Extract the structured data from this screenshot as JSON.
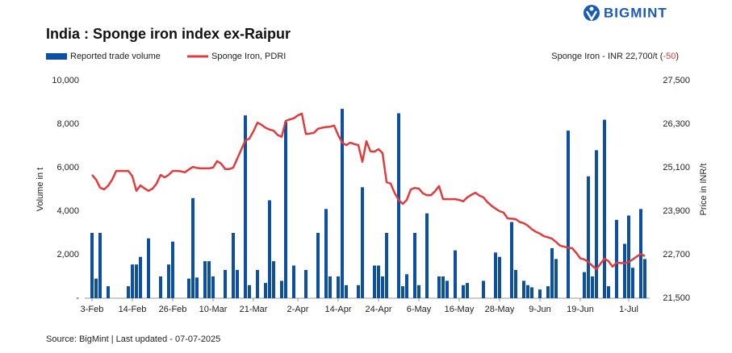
{
  "chart_data": {
    "type": "bar-line",
    "logo": "BIGMINT",
    "title": "India : Sponge iron index ex-Raipur",
    "annotation": "Sponge Iron - INR 22,700/t (",
    "annotation_change": "-50",
    "annotation_end": ")",
    "ylabel": "Volume in t",
    "y2label": "Price in INR/t",
    "source": "Source: BigMint | Last updated - 07-07-2025",
    "categories": [
      "3-Feb",
      null,
      null,
      null,
      null,
      null,
      null,
      null,
      null,
      null,
      "14-Feb",
      null,
      null,
      null,
      null,
      null,
      null,
      null,
      null,
      null,
      "26-Feb",
      null,
      null,
      null,
      null,
      null,
      null,
      null,
      null,
      null,
      "10-Mar",
      null,
      null,
      null,
      null,
      null,
      null,
      null,
      null,
      null,
      "21-Mar",
      null,
      null,
      null,
      null,
      null,
      null,
      null,
      null,
      null,
      null,
      "2-Apr",
      null,
      null,
      null,
      null,
      null,
      null,
      null,
      null,
      null,
      "14-Apr",
      null,
      null,
      null,
      null,
      null,
      null,
      null,
      null,
      null,
      "24-Apr",
      null,
      null,
      null,
      null,
      null,
      null,
      null,
      null,
      null,
      "6-May",
      null,
      null,
      null,
      null,
      null,
      null,
      null,
      null,
      null,
      "16-May",
      null,
      null,
      null,
      null,
      null,
      null,
      null,
      null,
      null,
      "28-May",
      null,
      null,
      null,
      null,
      null,
      null,
      null,
      null,
      null,
      "9-Jun",
      null,
      null,
      null,
      null,
      null,
      null,
      null,
      null,
      null,
      "19-Jun",
      null,
      null,
      null,
      null,
      null,
      null,
      null,
      null,
      null,
      null,
      null,
      "1-Jul",
      null,
      null,
      null,
      null
    ],
    "series": [
      {
        "name": "Reported trade volume",
        "type": "bar",
        "color": "#0d4fa3",
        "values": [
          3000,
          900,
          3000,
          null,
          550,
          null,
          null,
          null,
          null,
          550,
          1550,
          1550,
          1900,
          null,
          2750,
          null,
          null,
          1000,
          null,
          1550,
          2600,
          null,
          null,
          null,
          900,
          4600,
          950,
          null,
          1700,
          1700,
          1000,
          null,
          null,
          1300,
          null,
          3000,
          1300,
          null,
          8400,
          600,
          null,
          1300,
          null,
          700,
          4500,
          1700,
          null,
          800,
          8100,
          null,
          1500,
          null,
          null,
          1300,
          null,
          null,
          3000,
          null,
          4100,
          1000,
          null,
          1000,
          8700,
          600,
          null,
          null,
          600,
          5100,
          null,
          null,
          1500,
          1500,
          1000,
          3000,
          null,
          null,
          8500,
          550,
          1100,
          null,
          3000,
          600,
          null,
          3900,
          null,
          null,
          1000,
          1000,
          800,
          null,
          2200,
          null,
          600,
          700,
          null,
          null,
          null,
          800,
          null,
          null,
          2100,
          1900,
          null,
          null,
          3500,
          1300,
          null,
          800,
          600,
          500,
          null,
          400,
          null,
          550,
          2300,
          1800,
          null,
          null,
          7700,
          null,
          null,
          null,
          1200,
          5600,
          1000,
          6800,
          null,
          8200,
          550,
          null,
          3600,
          null,
          2500,
          3800,
          1400,
          null,
          4100,
          1800
        ]
      },
      {
        "name": "Sponge Iron, PDRI",
        "type": "line",
        "axis": "y2",
        "color": "#e23b3b",
        "values": [
          24900,
          24770,
          24550,
          24500,
          24600,
          24770,
          25010,
          25010,
          25010,
          25010,
          24860,
          24460,
          24610,
          24530,
          24460,
          24520,
          24660,
          24900,
          24830,
          24900,
          25010,
          25010,
          25000,
          24970,
          25050,
          25120,
          25090,
          25080,
          25080,
          25080,
          25100,
          25280,
          25210,
          25060,
          25060,
          25100,
          25350,
          25600,
          25850,
          25900,
          26100,
          26340,
          26280,
          26200,
          26150,
          26120,
          26000,
          25950,
          26390,
          26430,
          26460,
          26540,
          26590,
          26030,
          26040,
          26060,
          26170,
          26200,
          26220,
          26230,
          26260,
          26000,
          25790,
          25720,
          25790,
          25750,
          25720,
          25260,
          25830,
          25550,
          25540,
          25610,
          25500,
          24700,
          24660,
          24400,
          24210,
          24100,
          24210,
          24500,
          24540,
          24520,
          24390,
          24340,
          24340,
          24450,
          24590,
          24230,
          24230,
          24230,
          24230,
          24210,
          24170,
          24280,
          24350,
          24410,
          24330,
          24280,
          24150,
          24050,
          23970,
          23900,
          23860,
          23700,
          23690,
          23680,
          23600,
          23570,
          23500,
          23400,
          23330,
          23280,
          23210,
          23180,
          23140,
          23050,
          22950,
          22920,
          22890,
          22880,
          22750,
          22600,
          22570,
          22500,
          22390,
          22300,
          22450,
          22590,
          22520,
          22370,
          22480,
          22470,
          22460,
          22500,
          22570,
          22650,
          22720,
          22660
        ]
      }
    ],
    "ylim": [
      0,
      10000
    ],
    "yticks": [
      {
        "value": 0,
        "label": "-"
      },
      {
        "value": 2000,
        "label": "2,000"
      },
      {
        "value": 4000,
        "label": "4,000"
      },
      {
        "value": 6000,
        "label": "6,000"
      },
      {
        "value": 8000,
        "label": "8,000"
      },
      {
        "value": 10000,
        "label": "10,000"
      }
    ],
    "y2lim": [
      21500,
      27500
    ],
    "y2ticks": [
      {
        "value": 21500,
        "label": "21,500"
      },
      {
        "value": 22700,
        "label": "22,700"
      },
      {
        "value": 23900,
        "label": "23,900"
      },
      {
        "value": 25100,
        "label": "25,100"
      },
      {
        "value": 26300,
        "label": "26,300"
      },
      {
        "value": 27500,
        "label": "27,500"
      }
    ],
    "grid": false,
    "legend": "top-left"
  }
}
